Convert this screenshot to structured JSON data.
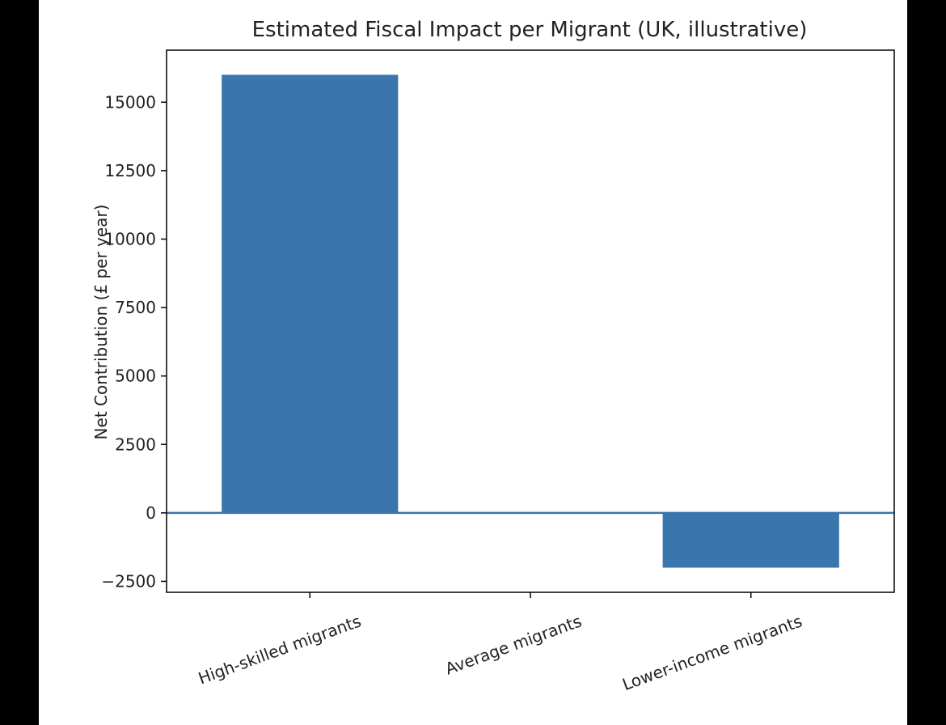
{
  "chart_data": {
    "type": "bar",
    "title": "Estimated Fiscal Impact per Migrant (UK, illustrative)",
    "xlabel": "",
    "ylabel": "Net Contribution (£ per year)",
    "categories": [
      "High-skilled migrants",
      "Average migrants",
      "Lower-income migrants"
    ],
    "values": [
      16000,
      0,
      -2000
    ],
    "ylim": [
      -2900,
      16900
    ],
    "yticks": [
      -2500,
      0,
      2500,
      5000,
      7500,
      10000,
      12500,
      15000
    ],
    "ytick_labels": [
      "−2500",
      "0",
      "2500",
      "5000",
      "7500",
      "10000",
      "12500",
      "15000"
    ],
    "bar_color": "#3a75ae",
    "zero_line_color": "#3a75ae",
    "grid": false,
    "zero_line": true
  }
}
